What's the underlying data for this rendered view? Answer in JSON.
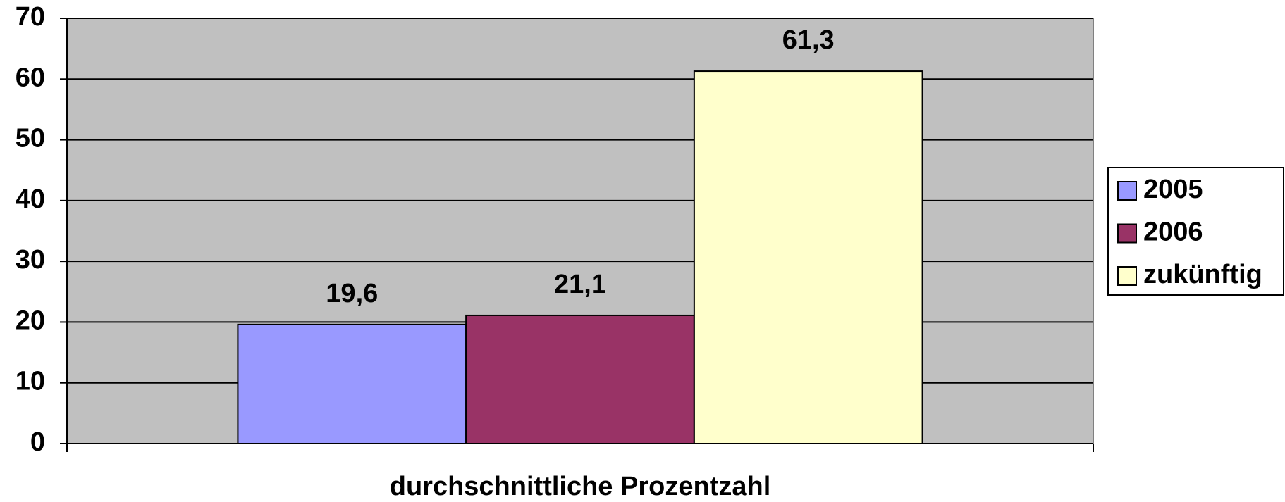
{
  "chart_data": {
    "type": "bar",
    "categories": [
      "durchschnittliche Prozentzahl"
    ],
    "series": [
      {
        "name": "2005",
        "color": "#9999ff",
        "values": [
          19.6
        ],
        "value_labels": [
          "19,6"
        ]
      },
      {
        "name": "2006",
        "color": "#993366",
        "values": [
          21.1
        ],
        "value_labels": [
          "21,1"
        ]
      },
      {
        "name": "zukünftig",
        "color": "#ffffcc",
        "values": [
          61.3
        ],
        "value_labels": [
          "61,3"
        ]
      }
    ],
    "ylim": [
      0,
      70
    ],
    "yticks": [
      0,
      10,
      20,
      30,
      40,
      50,
      60,
      70
    ],
    "grid": true,
    "legend": "right"
  }
}
